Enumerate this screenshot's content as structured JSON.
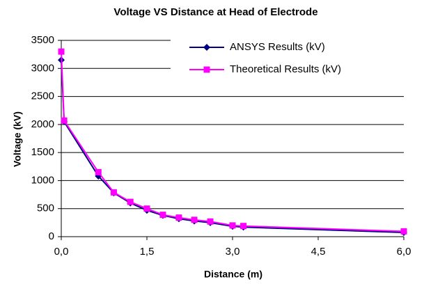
{
  "chart_data": {
    "type": "line",
    "title": "Voltage VS Distance at Head of Electrode",
    "xlabel": "Distance (m)",
    "ylabel": "Voltage (kV)",
    "xlim": [
      0,
      6
    ],
    "xticks": [
      {
        "value": 0,
        "label": "0,0"
      },
      {
        "value": 1.5,
        "label": "1,5"
      },
      {
        "value": 3,
        "label": "3,0"
      },
      {
        "value": 4.5,
        "label": "4,5"
      },
      {
        "value": 6,
        "label": "6,0"
      }
    ],
    "ylim": [
      0,
      3500
    ],
    "yticks": [
      0,
      500,
      1000,
      1500,
      2000,
      2500,
      3000,
      3500
    ],
    "grid": true,
    "legend": "upper right",
    "series": [
      {
        "name": "ANSYS Results (kV)",
        "color": "#000080",
        "marker": "diamond",
        "x": [
          0,
          0.05,
          0.65,
          0.92,
          1.21,
          1.5,
          1.78,
          2.06,
          2.33,
          2.61,
          3.0,
          3.19,
          6.0
        ],
        "values": [
          3150,
          2050,
          1080,
          780,
          600,
          470,
          380,
          320,
          280,
          250,
          185,
          170,
          75
        ]
      },
      {
        "name": "Theoretical Results (kV)",
        "color": "#ff00ff",
        "marker": "square",
        "x": [
          0,
          0.05,
          0.65,
          0.92,
          1.21,
          1.5,
          1.78,
          2.06,
          2.33,
          2.61,
          3.0,
          3.19,
          6.0
        ],
        "values": [
          3300,
          2070,
          1150,
          790,
          620,
          500,
          390,
          340,
          300,
          270,
          200,
          190,
          95
        ]
      }
    ]
  }
}
